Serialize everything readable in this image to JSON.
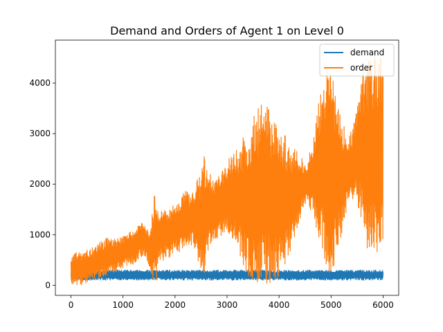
{
  "chart_data": {
    "type": "line",
    "title": "Demand and Orders of Agent 1 on Level 0",
    "xlabel": "",
    "ylabel": "",
    "xlim": [
      -300,
      6300
    ],
    "ylim": [
      -200,
      4850
    ],
    "xticks": [
      0,
      1000,
      2000,
      3000,
      4000,
      5000,
      6000
    ],
    "yticks": [
      0,
      1000,
      2000,
      3000,
      4000
    ],
    "xtick_labels": [
      "0",
      "1000",
      "2000",
      "3000",
      "4000",
      "5000",
      "6000"
    ],
    "ytick_labels": [
      "0",
      "1000",
      "2000",
      "3000",
      "4000"
    ],
    "legend": {
      "placement": "top-right",
      "entries": [
        {
          "name": "demand",
          "color": "#1f77b4"
        },
        {
          "name": "order",
          "color": "#ff7f0e"
        }
      ]
    },
    "series": [
      {
        "name": "demand",
        "color": "#1f77b4",
        "x": [
          0,
          6000
        ],
        "low": [
          100,
          100
        ],
        "high": [
          300,
          300
        ]
      },
      {
        "name": "order",
        "color": "#ff7f0e",
        "x": [
          0,
          100,
          200,
          300,
          400,
          500,
          600,
          700,
          800,
          900,
          1000,
          1100,
          1200,
          1300,
          1400,
          1500,
          1550,
          1600,
          1650,
          1700,
          1800,
          1900,
          2000,
          2100,
          2200,
          2300,
          2400,
          2500,
          2550,
          2600,
          2700,
          2800,
          2900,
          3000,
          3100,
          3200,
          3300,
          3400,
          3500,
          3600,
          3700,
          3800,
          3900,
          4000,
          4100,
          4200,
          4300,
          4400,
          4500,
          4600,
          4700,
          4800,
          4900,
          5000,
          5100,
          5200,
          5300,
          5400,
          5500,
          5600,
          5700,
          5800,
          5900,
          6000
        ],
        "low": [
          0,
          0,
          0,
          50,
          100,
          150,
          100,
          200,
          250,
          300,
          350,
          400,
          400,
          500,
          600,
          350,
          0,
          0,
          100,
          450,
          500,
          550,
          700,
          650,
          750,
          800,
          700,
          200,
          0,
          600,
          850,
          900,
          1000,
          1050,
          900,
          800,
          400,
          200,
          50,
          0,
          0,
          0,
          50,
          100,
          300,
          600,
          900,
          1300,
          1600,
          1500,
          1200,
          800,
          400,
          100,
          500,
          1000,
          1500,
          1700,
          1600,
          1200,
          700,
          500,
          550,
          650
        ],
        "high": [
          600,
          650,
          650,
          700,
          750,
          800,
          900,
          950,
          900,
          950,
          1000,
          1050,
          1100,
          1200,
          1250,
          1100,
          1300,
          1900,
          1650,
          1500,
          1550,
          1500,
          1650,
          1700,
          1900,
          1800,
          2000,
          2300,
          2600,
          2400,
          2150,
          2100,
          2350,
          2450,
          2650,
          2700,
          2900,
          3100,
          3350,
          3500,
          3700,
          3550,
          3400,
          3300,
          3000,
          2800,
          2700,
          2600,
          2400,
          2700,
          3200,
          3900,
          4300,
          4300,
          3700,
          3300,
          3000,
          3100,
          3500,
          4200,
          4450,
          4550,
          4550,
          4650
        ]
      }
    ]
  }
}
